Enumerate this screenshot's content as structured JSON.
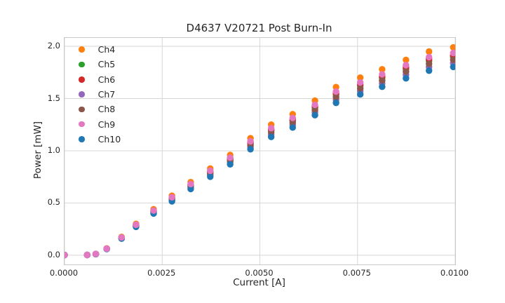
{
  "chart_data": {
    "type": "scatter",
    "title": "D4637 V20721 Post Burn-In",
    "xlabel": "Current [A]",
    "ylabel": "Power [mW]",
    "xlim": [
      0.0,
      0.01
    ],
    "ylim": [
      -0.088,
      2.081
    ],
    "grid": true,
    "grid_color": "#d7d7d7",
    "spine_color": "#c9c9c9",
    "text_color": "#262626",
    "legend_position": "upper left",
    "x_ticks": {
      "values": [
        0.0,
        0.0025,
        0.005,
        0.0075,
        0.01
      ],
      "labels": [
        "0.0000",
        "0.0025",
        "0.0050",
        "0.0075",
        "0.0100"
      ]
    },
    "y_ticks": {
      "values": [
        0.0,
        0.5,
        1.0,
        1.5,
        2.0
      ],
      "labels": [
        "0.0",
        "0.5",
        "1.0",
        "1.5",
        "2.0"
      ]
    },
    "x": [
      0.0,
      0.00058,
      0.0008,
      0.00108,
      0.00146,
      0.00183,
      0.00228,
      0.00275,
      0.00323,
      0.00373,
      0.00424,
      0.00476,
      0.00529,
      0.00584,
      0.00641,
      0.00695,
      0.00757,
      0.00813,
      0.00874,
      0.00933,
      0.00995
    ],
    "series": [
      {
        "name": "Ch4",
        "color": "#ff7f0e",
        "values": [
          0.002,
          0.003,
          0.012,
          0.065,
          0.175,
          0.3,
          0.44,
          0.57,
          0.7,
          0.83,
          0.96,
          1.12,
          1.25,
          1.35,
          1.48,
          1.61,
          1.7,
          1.78,
          1.87,
          1.95,
          1.99
        ]
      },
      {
        "name": "Ch5",
        "color": "#2ca02c",
        "values": [
          0.002,
          0.003,
          0.011,
          0.062,
          0.167,
          0.286,
          0.42,
          0.544,
          0.668,
          0.792,
          0.916,
          1.068,
          1.193,
          1.288,
          1.412,
          1.536,
          1.622,
          1.698,
          1.784,
          1.86,
          1.898
        ]
      },
      {
        "name": "Ch6",
        "color": "#d62728",
        "values": [
          0.002,
          0.003,
          0.012,
          0.063,
          0.168,
          0.289,
          0.423,
          0.548,
          0.673,
          0.799,
          0.924,
          1.077,
          1.203,
          1.299,
          1.424,
          1.549,
          1.635,
          1.712,
          1.799,
          1.876,
          1.914
        ]
      },
      {
        "name": "Ch7",
        "color": "#9467bd",
        "values": [
          0.002,
          0.003,
          0.011,
          0.06,
          0.162,
          0.277,
          0.407,
          0.527,
          0.647,
          0.767,
          0.887,
          1.035,
          1.155,
          1.247,
          1.368,
          1.488,
          1.571,
          1.645,
          1.728,
          1.802,
          1.839
        ]
      },
      {
        "name": "Ch8",
        "color": "#8c564b",
        "values": [
          0.002,
          0.003,
          0.011,
          0.061,
          0.165,
          0.282,
          0.414,
          0.536,
          0.658,
          0.78,
          0.902,
          1.053,
          1.175,
          1.269,
          1.391,
          1.513,
          1.598,
          1.673,
          1.758,
          1.833,
          1.871
        ]
      },
      {
        "name": "Ch9",
        "color": "#e377c2",
        "values": [
          0.002,
          0.003,
          0.012,
          0.063,
          0.17,
          0.292,
          0.428,
          0.555,
          0.681,
          0.808,
          0.934,
          1.09,
          1.216,
          1.314,
          1.44,
          1.567,
          1.654,
          1.732,
          1.82,
          1.897,
          1.936
        ]
      },
      {
        "name": "Ch10",
        "color": "#1f77b4",
        "values": [
          0.002,
          0.003,
          0.011,
          0.059,
          0.159,
          0.272,
          0.399,
          0.516,
          0.634,
          0.752,
          0.87,
          1.015,
          1.133,
          1.223,
          1.341,
          1.459,
          1.54,
          1.613,
          1.694,
          1.767,
          1.803
        ]
      }
    ],
    "draw_order": [
      "Ch4",
      "Ch5",
      "Ch6",
      "Ch7",
      "Ch8",
      "Ch10",
      "Ch9"
    ]
  }
}
